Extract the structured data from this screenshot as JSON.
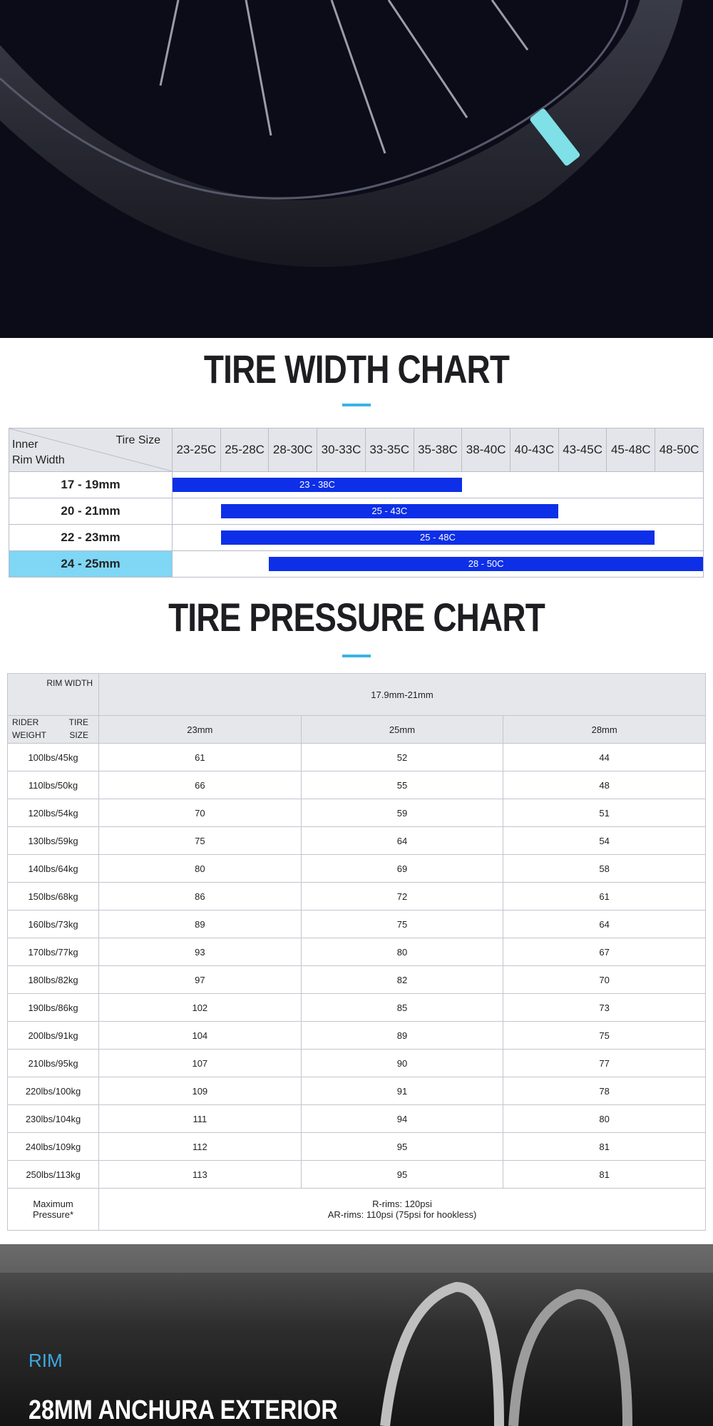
{
  "width_chart": {
    "title": "TIRE WIDTH CHART",
    "corner": {
      "tire_size": "Tire Size",
      "inner": "Inner",
      "rim_width": "Rim Width"
    },
    "tire_sizes": [
      "23-25C",
      "25-28C",
      "28-30C",
      "30-33C",
      "33-35C",
      "35-38C",
      "38-40C",
      "40-43C",
      "43-45C",
      "45-48C",
      "48-50C"
    ],
    "rows": [
      {
        "rim": "17 - 19mm",
        "range": "23 - 38C"
      },
      {
        "rim": "20 - 21mm",
        "range": "25 - 43C"
      },
      {
        "rim": "22 - 23mm",
        "range": "25 - 48C"
      },
      {
        "rim": "24 - 25mm",
        "range": "28 - 50C"
      }
    ],
    "highlight_row": 3
  },
  "pressure_chart": {
    "title": "TIRE PRESSURE CHART",
    "corner": {
      "rim_width": "RIM WIDTH",
      "rider_weight": "RIDER WEIGHT",
      "tire_size": "TIRE SIZE"
    },
    "rim_width": "17.9mm-21mm",
    "tire_sizes": [
      "23mm",
      "25mm",
      "28mm"
    ],
    "rows": [
      [
        "100lbs/45kg",
        "61",
        "52",
        "44"
      ],
      [
        "110lbs/50kg",
        "66",
        "55",
        "48"
      ],
      [
        "120lbs/54kg",
        "70",
        "59",
        "51"
      ],
      [
        "130lbs/59kg",
        "75",
        "64",
        "54"
      ],
      [
        "140lbs/64kg",
        "80",
        "69",
        "58"
      ],
      [
        "150lbs/68kg",
        "86",
        "72",
        "61"
      ],
      [
        "160lbs/73kg",
        "89",
        "75",
        "64"
      ],
      [
        "170lbs/77kg",
        "93",
        "80",
        "67"
      ],
      [
        "180lbs/82kg",
        "97",
        "82",
        "70"
      ],
      [
        "190lbs/86kg",
        "102",
        "85",
        "73"
      ],
      [
        "200lbs/91kg",
        "104",
        "89",
        "75"
      ],
      [
        "210lbs/95kg",
        "107",
        "90",
        "77"
      ],
      [
        "220lbs/100kg",
        "109",
        "91",
        "78"
      ],
      [
        "230lbs/104kg",
        "111",
        "94",
        "80"
      ],
      [
        "240lbs/109kg",
        "112",
        "95",
        "81"
      ],
      [
        "250lbs/113kg",
        "113",
        "95",
        "81"
      ]
    ],
    "footer": {
      "label": "Maximum Pressure*",
      "lines": [
        "R-rims: 120psi",
        "AR-rims: 110psi (75psi for hookless)"
      ]
    }
  },
  "bottom": {
    "kicker": "RIM",
    "heading": "28MM ANCHURA EXTERIOR"
  }
}
